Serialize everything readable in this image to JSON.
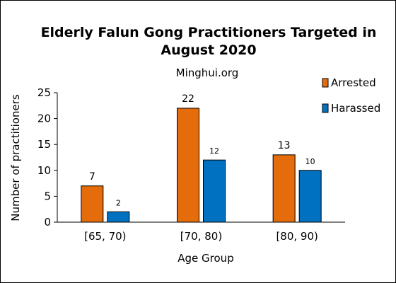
{
  "chart_data": {
    "type": "bar",
    "title_line1": "Elderly Falun Gong Practitioners Targeted in",
    "title_line2": "August 2020",
    "subtitle": "Minghui.org",
    "xlabel": "Age Group",
    "ylabel": "Number of practitioners",
    "categories": [
      "[65, 70)",
      "[70, 80)",
      "[80, 90)"
    ],
    "series": [
      {
        "name": "Arrested",
        "values": [
          7,
          22,
          13
        ],
        "color": "#E46C0A",
        "labels": [
          "7",
          "22",
          "13"
        ]
      },
      {
        "name": "Harassed",
        "values": [
          2,
          12,
          10
        ],
        "color": "#0070C0",
        "labels": [
          "2",
          "12",
          "10"
        ]
      }
    ],
    "ylim": [
      0,
      25
    ],
    "yticks": [
      "0",
      "5",
      "10",
      "15",
      "20",
      "25"
    ],
    "grid": false,
    "legend_position": "right"
  }
}
